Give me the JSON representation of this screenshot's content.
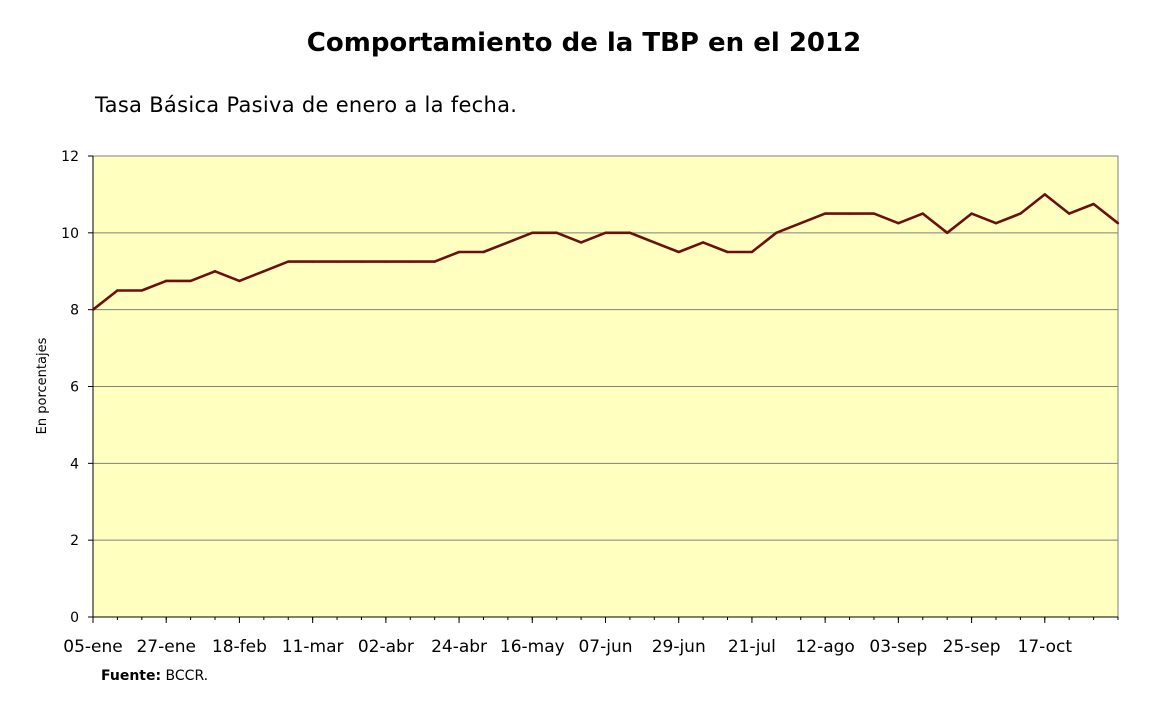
{
  "chart_data": {
    "type": "line",
    "title": "Comportamiento de la TBP en el 2012",
    "subtitle": "Tasa Básica Pasiva de enero a la fecha.",
    "xlabel": "",
    "ylabel": "En porcentajes",
    "ylim": [
      0,
      12
    ],
    "yticks": [
      "0",
      "2",
      "4",
      "6",
      "8",
      "10",
      "12"
    ],
    "x_tick_labels": [
      "05-ene",
      "27-ene",
      "18-feb",
      "11-mar",
      "02-abr",
      "24-abr",
      "16-may",
      "07-jun",
      "29-jun",
      "21-jul",
      "12-ago",
      "03-sep",
      "25-sep",
      "17-oct"
    ],
    "x_tick_step": 3,
    "grid": "horizontal",
    "plot_background": "#ffffc0",
    "line_color": "#6b0f0f",
    "series": [
      {
        "values": [
          8.0,
          8.5,
          8.5,
          8.75,
          8.75,
          9.0,
          8.75,
          9.0,
          9.25,
          9.25,
          9.25,
          9.25,
          9.25,
          9.25,
          9.25,
          9.5,
          9.5,
          9.75,
          10.0,
          10.0,
          9.75,
          10.0,
          10.0,
          9.75,
          9.5,
          9.75,
          9.5,
          9.5,
          10.0,
          10.25,
          10.5,
          10.5,
          10.5,
          10.25,
          10.5,
          10.0,
          10.5,
          10.25,
          10.5,
          11.0,
          10.5,
          10.75,
          10.25
        ]
      }
    ]
  },
  "source": {
    "label": "Fuente:",
    "text": "BCCR."
  }
}
